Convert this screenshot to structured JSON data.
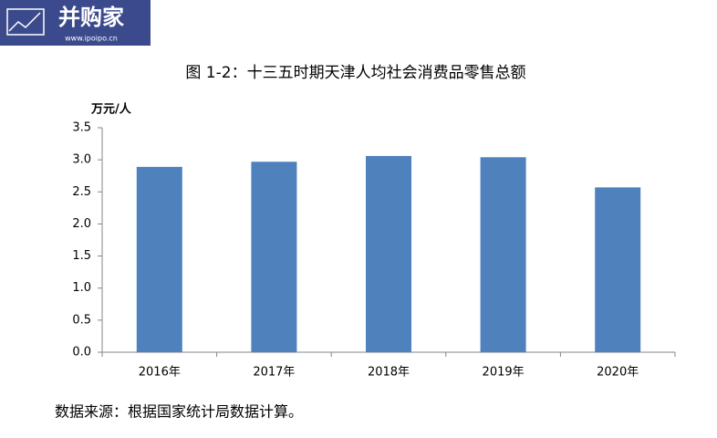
{
  "logo": {
    "name": "并购家",
    "url": "www.ipoipo.cn"
  },
  "chart_data": {
    "type": "bar",
    "title": "图 1-2：十三五时期天津人均社会消费品零售总额",
    "y_label": "万元/人",
    "categories": [
      "2016年",
      "2017年",
      "2018年",
      "2019年",
      "2020年"
    ],
    "values": [
      2.89,
      2.97,
      3.06,
      3.04,
      2.57
    ],
    "color": "#4f81bd",
    "ylim": [
      0,
      3.5
    ],
    "yticks": [
      {
        "value": 0,
        "label": "0.0"
      },
      0.5,
      {
        "value": 1,
        "label": "1.0"
      },
      1.5,
      {
        "value": 2,
        "label": "2.0"
      },
      2.5,
      {
        "value": 3,
        "label": "3.0"
      },
      3.5
    ],
    "grid": false,
    "source": "数据来源：根据国家统计局数据计算。"
  }
}
